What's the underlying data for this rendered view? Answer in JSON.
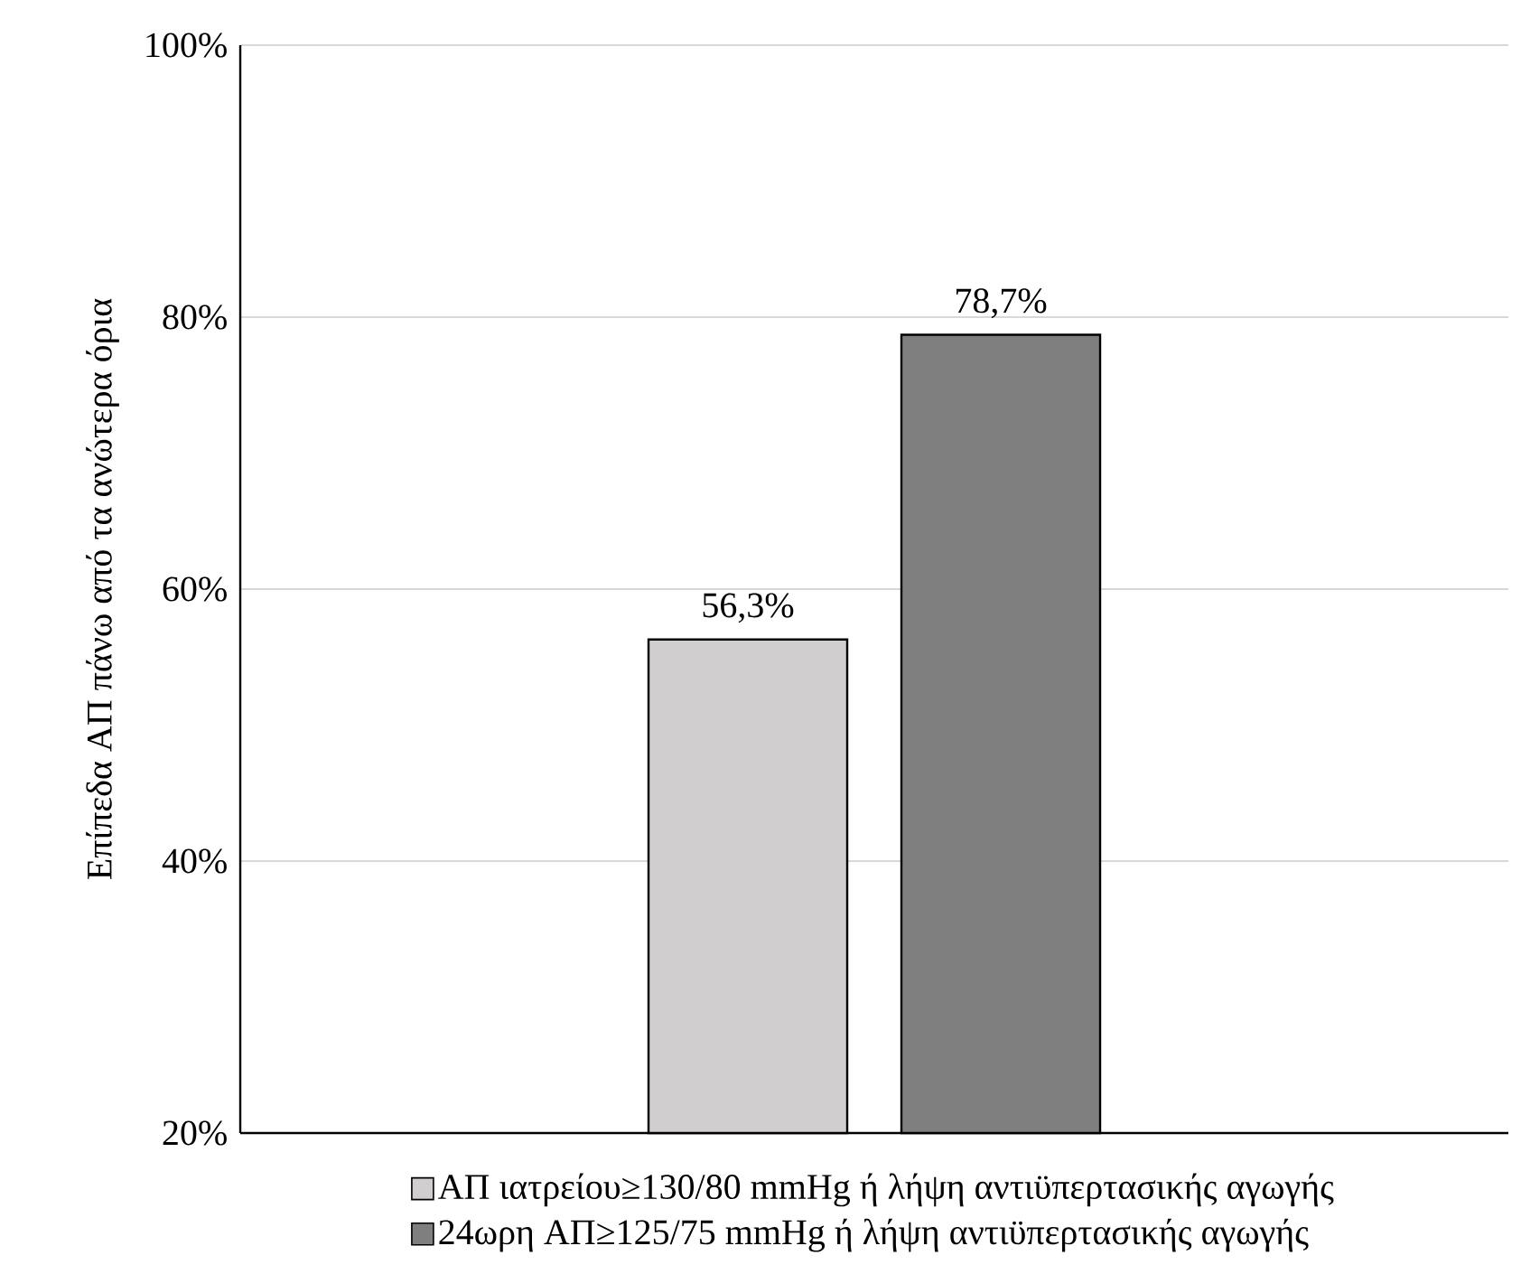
{
  "chart_data": {
    "type": "bar",
    "ylabel": "Επίπεδα ΑΠ πάνω από τα ανώτερα όρια",
    "categories": [
      null
    ],
    "series": [
      {
        "name": "ΑΠ ιατρείου≥130/80 mmHg ή λήψη αντιϋπερτασικής αγωγής",
        "color": "#d0cecf",
        "values": [
          56.3
        ],
        "value_labels": [
          "56,3%"
        ]
      },
      {
        "name": "24ωρη ΑΠ≥125/75 mmHg ή λήψη αντιϋπερτασικής αγωγής",
        "color": "#7f7f7f",
        "values": [
          78.7
        ],
        "value_labels": [
          "78,7%"
        ]
      }
    ],
    "ylim": [
      20,
      100
    ],
    "yticks": [
      {
        "value": 20,
        "label": "20%"
      },
      {
        "value": 40,
        "label": "40%"
      },
      {
        "value": 60,
        "label": "60%"
      },
      {
        "value": 80,
        "label": "80%"
      },
      {
        "value": 100,
        "label": "100%"
      }
    ],
    "grid": "y",
    "legend": "bottom"
  }
}
